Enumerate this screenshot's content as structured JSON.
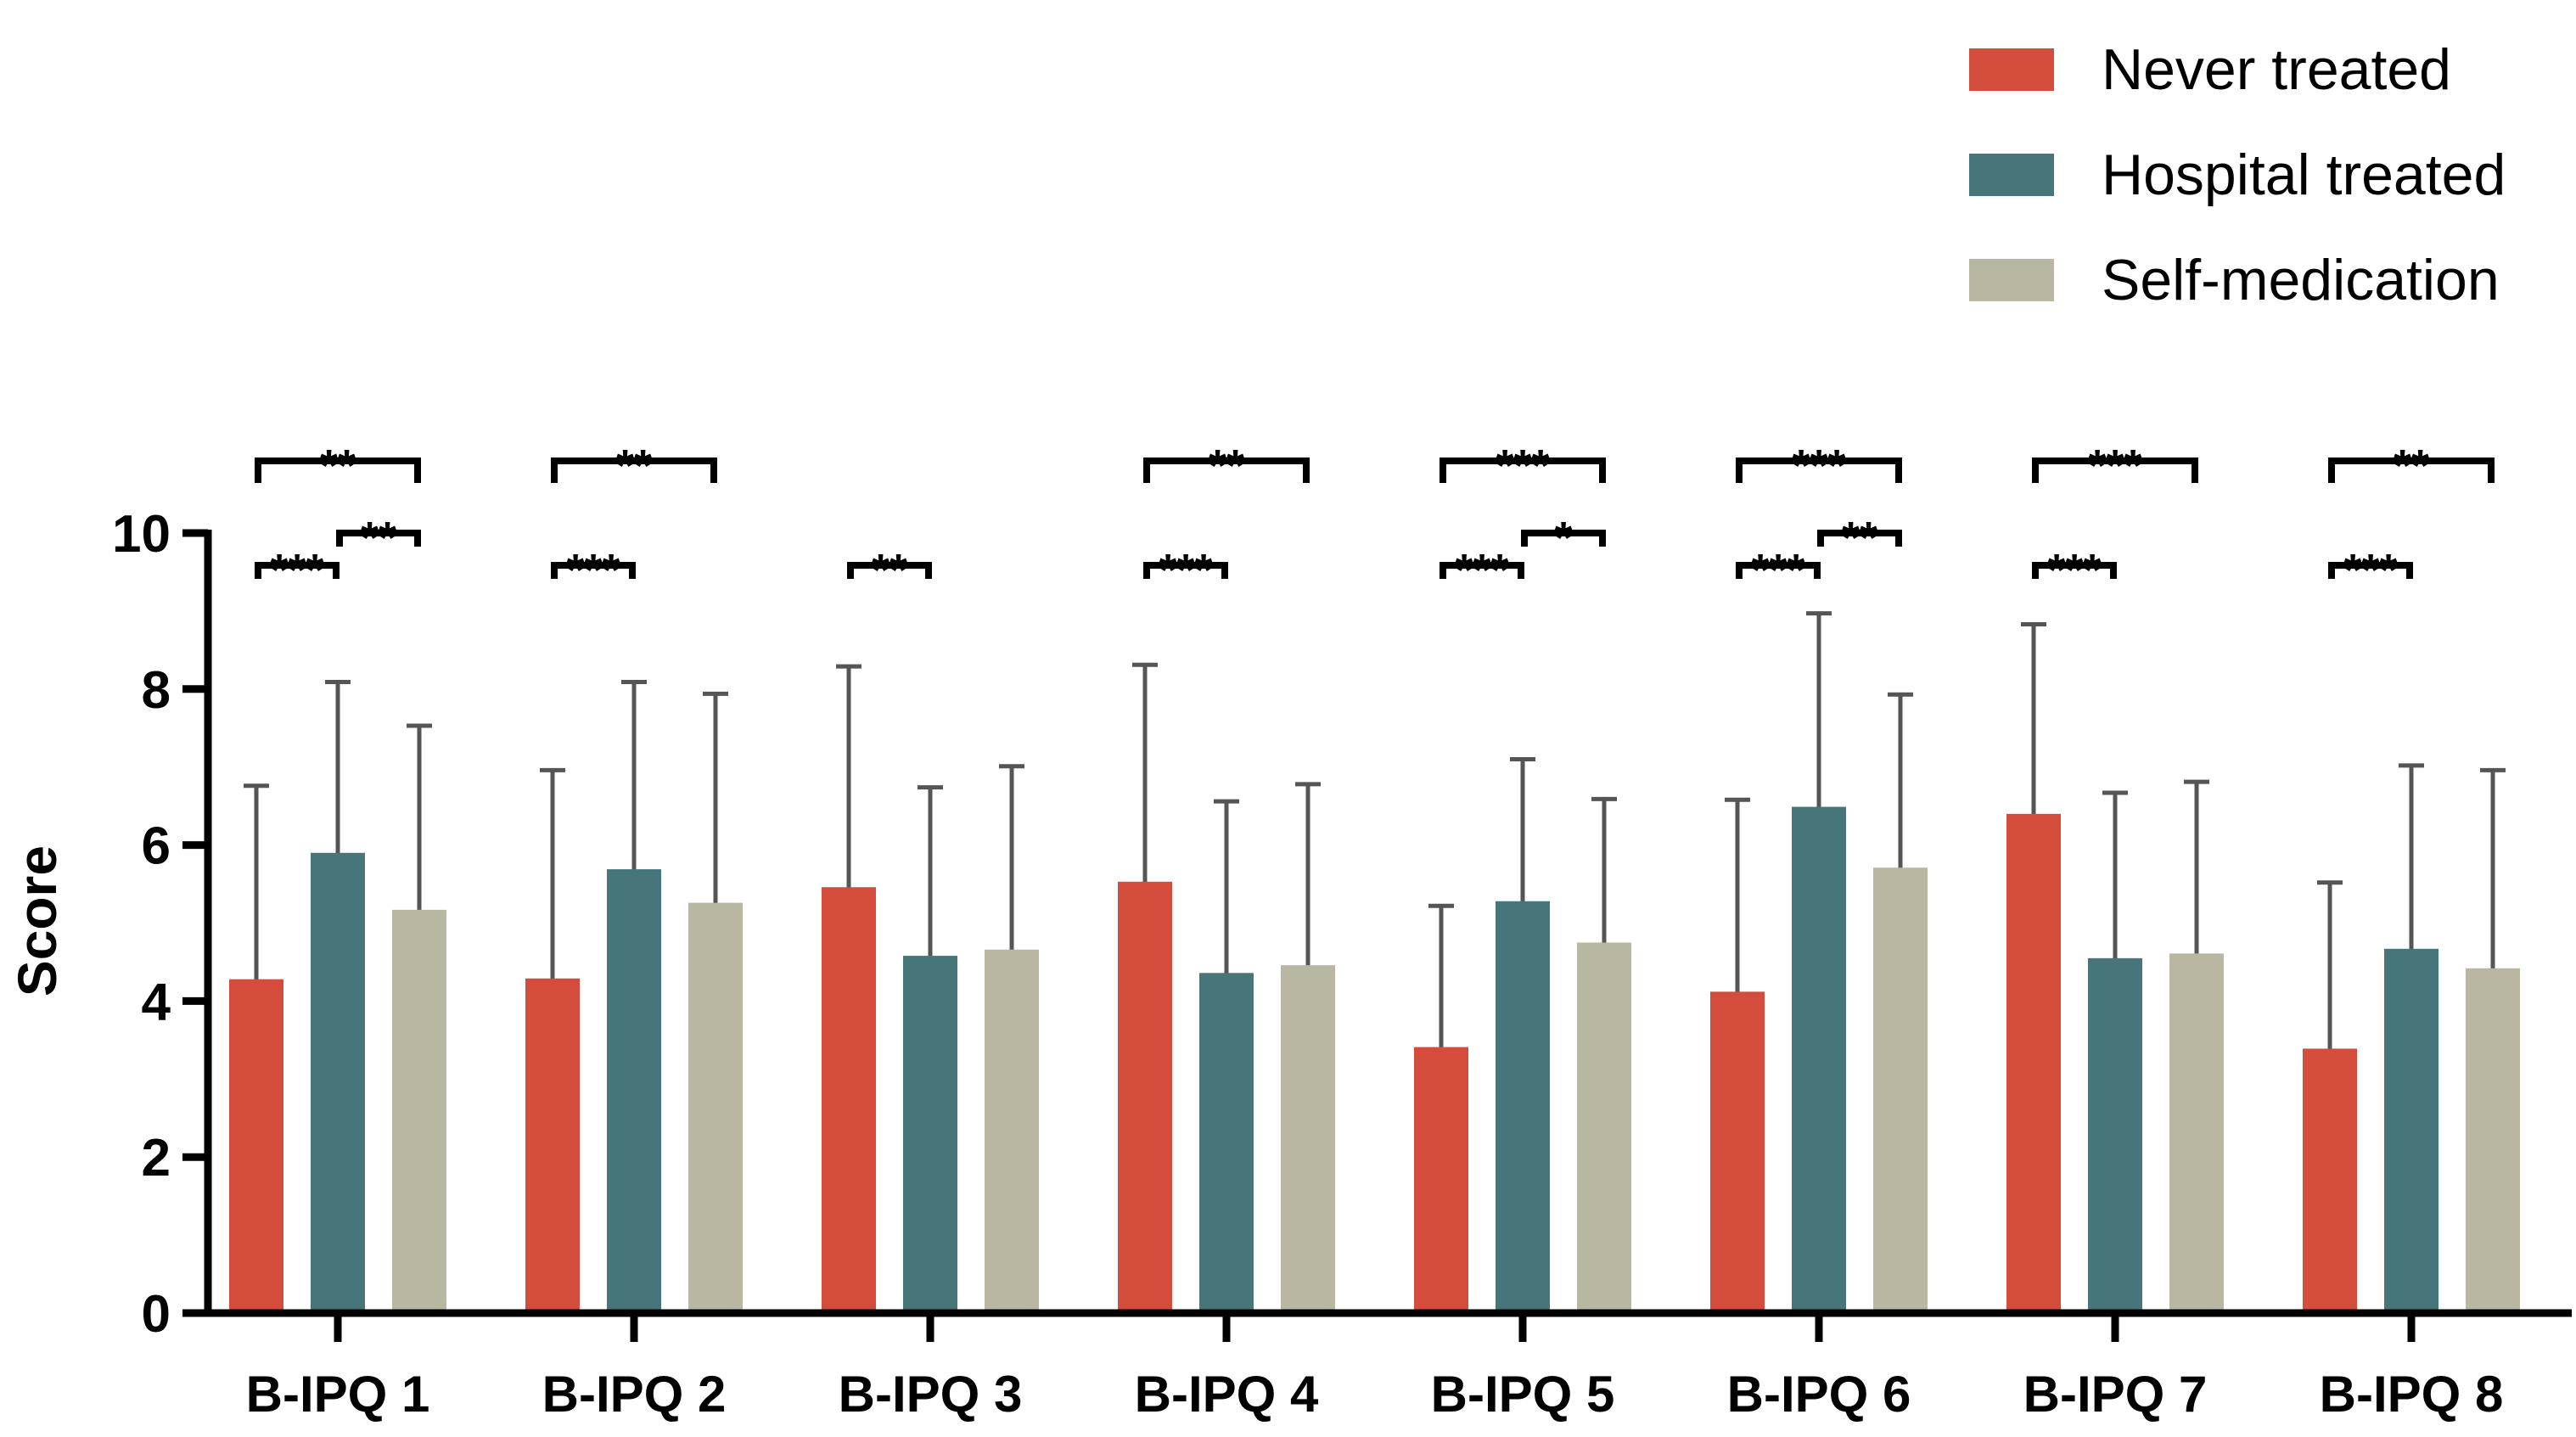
{
  "chart_data": {
    "type": "bar",
    "title": "",
    "xlabel": "",
    "ylabel": "Score",
    "ylim": [
      0,
      10
    ],
    "yticks": [
      "0",
      "2",
      "4",
      "6",
      "8",
      "10"
    ],
    "categories": [
      "B-IPQ 1",
      "B-IPQ 2",
      "B-IPQ 3",
      "B-IPQ 4",
      "B-IPQ 5",
      "B-IPQ 6",
      "B-IPQ 7",
      "B-IPQ 8"
    ],
    "series": [
      {
        "name": "Never treated",
        "color": "#D44D3C",
        "values": [
          4.28,
          4.29,
          5.46,
          5.53,
          3.41,
          4.12,
          6.4,
          3.39
        ],
        "error": [
          2.48,
          2.67,
          2.83,
          2.78,
          1.81,
          2.46,
          2.43,
          2.13
        ]
      },
      {
        "name": "Hospital treated",
        "color": "#47767A",
        "values": [
          5.9,
          5.69,
          4.58,
          4.36,
          5.28,
          6.49,
          4.55,
          4.67
        ],
        "error": [
          2.19,
          2.4,
          2.16,
          2.2,
          1.82,
          2.48,
          2.12,
          2.35
        ]
      },
      {
        "name": "Self-medication",
        "color": "#B9B7A2",
        "values": [
          5.17,
          5.26,
          4.66,
          4.46,
          4.75,
          5.71,
          4.61,
          4.42
        ],
        "error": [
          2.36,
          2.68,
          2.35,
          2.32,
          1.84,
          2.22,
          2.2,
          2.54
        ]
      }
    ],
    "legend": {
      "position": "top-right",
      "labels": [
        "Never treated",
        "Hospital treated",
        "Self-medication"
      ]
    },
    "significance": [
      {
        "category": 0,
        "from": 0,
        "to": 2,
        "level": "top",
        "label": "**"
      },
      {
        "category": 0,
        "from": 0,
        "to": 1,
        "level": "low",
        "label": "***"
      },
      {
        "category": 0,
        "from": 1,
        "to": 2,
        "level": "mid",
        "label": "**"
      },
      {
        "category": 1,
        "from": 0,
        "to": 2,
        "level": "top",
        "label": "**"
      },
      {
        "category": 1,
        "from": 0,
        "to": 1,
        "level": "low",
        "label": "***"
      },
      {
        "category": 2,
        "from": 0,
        "to": 1,
        "level": "low",
        "label": "**"
      },
      {
        "category": 3,
        "from": 0,
        "to": 2,
        "level": "top",
        "label": "**"
      },
      {
        "category": 3,
        "from": 0,
        "to": 1,
        "level": "low",
        "label": "***"
      },
      {
        "category": 4,
        "from": 0,
        "to": 2,
        "level": "top",
        "label": "***"
      },
      {
        "category": 4,
        "from": 0,
        "to": 1,
        "level": "low",
        "label": "***"
      },
      {
        "category": 4,
        "from": 1,
        "to": 2,
        "level": "mid",
        "label": "*"
      },
      {
        "category": 5,
        "from": 0,
        "to": 2,
        "level": "top",
        "label": "***"
      },
      {
        "category": 5,
        "from": 0,
        "to": 1,
        "level": "low",
        "label": "***"
      },
      {
        "category": 5,
        "from": 1,
        "to": 2,
        "level": "mid",
        "label": "**"
      },
      {
        "category": 6,
        "from": 0,
        "to": 2,
        "level": "top",
        "label": "***"
      },
      {
        "category": 6,
        "from": 0,
        "to": 1,
        "level": "low",
        "label": "***"
      },
      {
        "category": 7,
        "from": 0,
        "to": 2,
        "level": "top",
        "label": "**"
      },
      {
        "category": 7,
        "from": 0,
        "to": 1,
        "level": "low",
        "label": "***"
      }
    ]
  }
}
